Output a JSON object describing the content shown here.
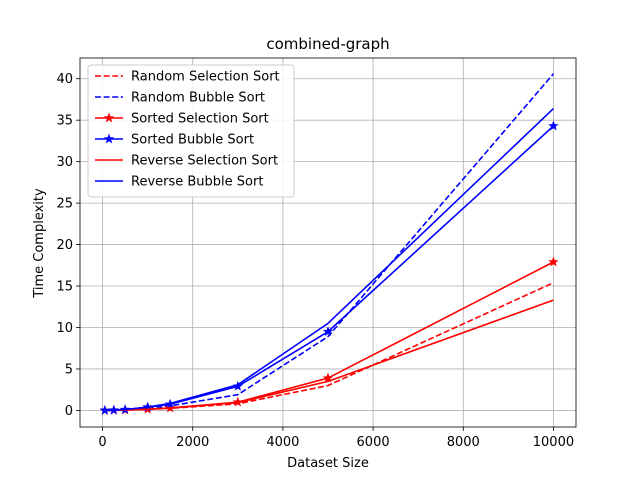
{
  "chart_data": {
    "type": "line",
    "title": "combined-graph",
    "xlabel": "Dataset Size",
    "ylabel": "Time Complexity",
    "xlim": [
      -500,
      10500
    ],
    "ylim": [
      -2,
      42.5
    ],
    "xticks": [
      0,
      2000,
      4000,
      6000,
      8000,
      10000
    ],
    "xtick_labels": [
      "0",
      "2000",
      "4000",
      "6000",
      "8000",
      "10000"
    ],
    "yticks": [
      0,
      5,
      10,
      15,
      20,
      25,
      30,
      35,
      40
    ],
    "ytick_labels": [
      "0",
      "5",
      "10",
      "15",
      "20",
      "25",
      "30",
      "35",
      "40"
    ],
    "grid": true,
    "legend_position": "top-left",
    "x": [
      50,
      250,
      500,
      1000,
      1500,
      3000,
      5000,
      10000
    ],
    "series": [
      {
        "name": "Random Selection Sort",
        "color": "#ff0000",
        "style": "dashed",
        "marker": "none",
        "values": [
          0.0,
          0.0,
          0.03,
          0.13,
          0.25,
          0.8,
          3.0,
          15.4
        ]
      },
      {
        "name": "Random Bubble Sort",
        "color": "#0000ff",
        "style": "dashed",
        "marker": "none",
        "values": [
          0.0,
          0.02,
          0.08,
          0.3,
          0.55,
          1.9,
          8.9,
          40.6
        ]
      },
      {
        "name": "Sorted Selection Sort",
        "color": "#ff0000",
        "style": "solid",
        "marker": "star",
        "values": [
          0.0,
          0.02,
          0.05,
          0.15,
          0.3,
          1.0,
          3.9,
          17.9
        ]
      },
      {
        "name": "Sorted Bubble Sort",
        "color": "#0000ff",
        "style": "solid",
        "marker": "star",
        "values": [
          0.0,
          0.03,
          0.1,
          0.4,
          0.75,
          2.9,
          9.5,
          34.3
        ]
      },
      {
        "name": "Reverse Selection Sort",
        "color": "#ff0000",
        "style": "solid",
        "marker": "none",
        "values": [
          0.0,
          0.01,
          0.04,
          0.14,
          0.28,
          0.95,
          3.5,
          13.3
        ]
      },
      {
        "name": "Reverse Bubble Sort",
        "color": "#0000ff",
        "style": "solid",
        "marker": "none",
        "values": [
          0.0,
          0.03,
          0.1,
          0.4,
          0.85,
          3.1,
          10.5,
          36.4
        ]
      }
    ]
  }
}
